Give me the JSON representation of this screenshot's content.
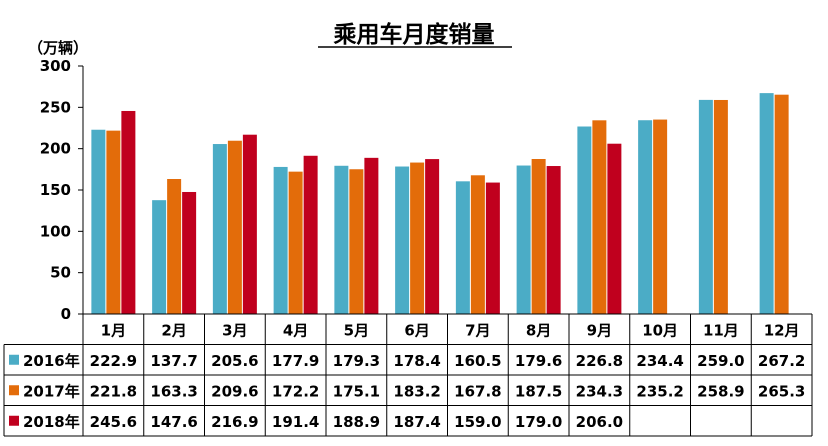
{
  "chart_data": {
    "type": "bar",
    "title": "乘用车月度销量",
    "ylabel": "（万辆）",
    "ylim": [
      0,
      300
    ],
    "yticks": [
      0,
      50,
      100,
      150,
      200,
      250,
      300
    ],
    "categories": [
      "1月",
      "2月",
      "3月",
      "4月",
      "5月",
      "6月",
      "7月",
      "8月",
      "9月",
      "10月",
      "11月",
      "12月"
    ],
    "series": [
      {
        "name": "2016年",
        "color": "#4bacc6",
        "values": [
          222.9,
          137.7,
          205.6,
          177.9,
          179.3,
          178.4,
          160.5,
          179.6,
          226.8,
          234.4,
          259.0,
          267.2
        ],
        "labels": [
          "222.9",
          "137.7",
          "205.6",
          "177.9",
          "179.3",
          "178.4",
          "160.5",
          "179.6",
          "226.8",
          "234.4",
          "259.0",
          "267.2"
        ]
      },
      {
        "name": "2017年",
        "color": "#e36c0a",
        "values": [
          221.8,
          163.3,
          209.6,
          172.2,
          175.1,
          183.2,
          167.8,
          187.5,
          234.3,
          235.2,
          258.9,
          265.3
        ],
        "labels": [
          "221.8",
          "163.3",
          "209.6",
          "172.2",
          "175.1",
          "183.2",
          "167.8",
          "187.5",
          "234.3",
          "235.2",
          "258.9",
          "265.3"
        ]
      },
      {
        "name": "2018年",
        "color": "#c0001e",
        "values": [
          245.6,
          147.6,
          216.9,
          191.4,
          188.9,
          187.4,
          159.0,
          179.0,
          206.0,
          null,
          null,
          null
        ],
        "labels": [
          "245.6",
          "147.6",
          "216.9",
          "191.4",
          "188.9",
          "187.4",
          "159.0",
          "179.0",
          "206.0",
          "",
          "",
          ""
        ]
      }
    ],
    "grid": false,
    "legend": "data-table"
  }
}
